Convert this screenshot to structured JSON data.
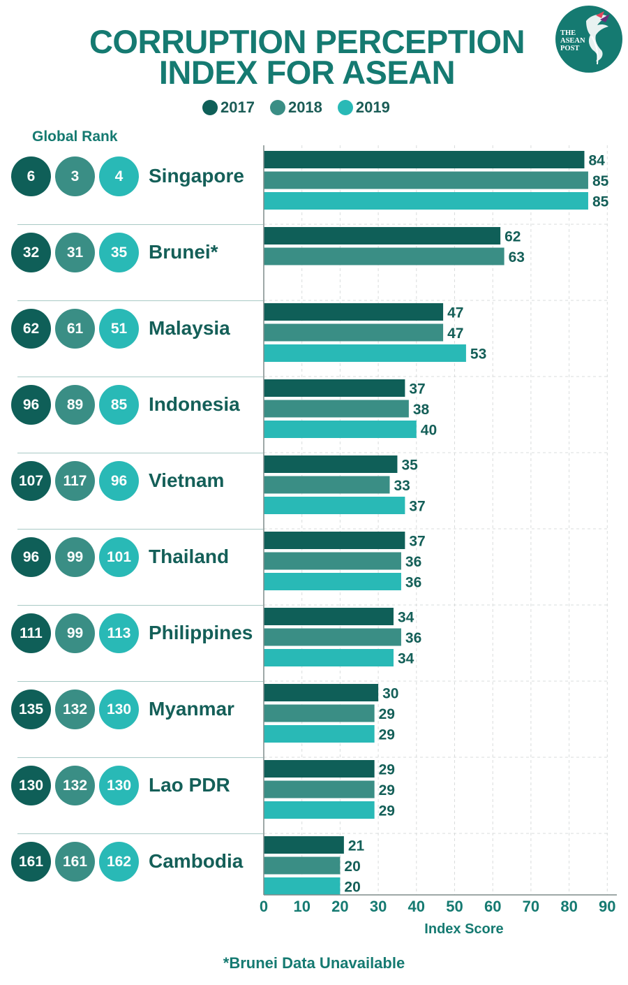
{
  "title_lines": [
    "CORRUPTION PERCEPTION",
    "INDEX FOR ASEAN"
  ],
  "logo": {
    "lines": [
      "THE",
      "ASEAN",
      "POST"
    ]
  },
  "rank_header": "Global Rank",
  "footnote": "*Brunei Data Unavailable",
  "colors": {
    "2017": "#0f5f58",
    "2018": "#3a8e85",
    "2019": "#29b9b6"
  },
  "chart_data": {
    "type": "bar",
    "orientation": "horizontal",
    "categories": [
      "Singapore",
      "Brunei*",
      "Malaysia",
      "Indonesia",
      "Vietnam",
      "Thailand",
      "Philippines",
      "Myanmar",
      "Lao PDR",
      "Cambodia"
    ],
    "series": [
      {
        "name": "2017",
        "values": [
          84,
          62,
          47,
          37,
          35,
          37,
          34,
          30,
          29,
          21
        ]
      },
      {
        "name": "2018",
        "values": [
          85,
          63,
          47,
          38,
          33,
          36,
          36,
          29,
          29,
          20
        ]
      },
      {
        "name": "2019",
        "values": [
          85,
          null,
          53,
          40,
          37,
          36,
          34,
          29,
          29,
          20
        ]
      }
    ],
    "global_rank": [
      [
        "6",
        "3",
        "4"
      ],
      [
        "32",
        "31",
        "35"
      ],
      [
        "62",
        "61",
        "51"
      ],
      [
        "96",
        "89",
        "85"
      ],
      [
        "107",
        "117",
        "96"
      ],
      [
        "96",
        "99",
        "101"
      ],
      [
        "111",
        "99",
        "113"
      ],
      [
        "135",
        "132",
        "130"
      ],
      [
        "130",
        "132",
        "130"
      ],
      [
        "161",
        "161",
        "162"
      ]
    ],
    "xlabel": "Index Score",
    "xlim": [
      0,
      90
    ],
    "xticks": [
      0,
      10,
      20,
      30,
      40,
      50,
      60,
      70,
      80,
      90
    ],
    "grid": true,
    "legend_position": "top"
  }
}
